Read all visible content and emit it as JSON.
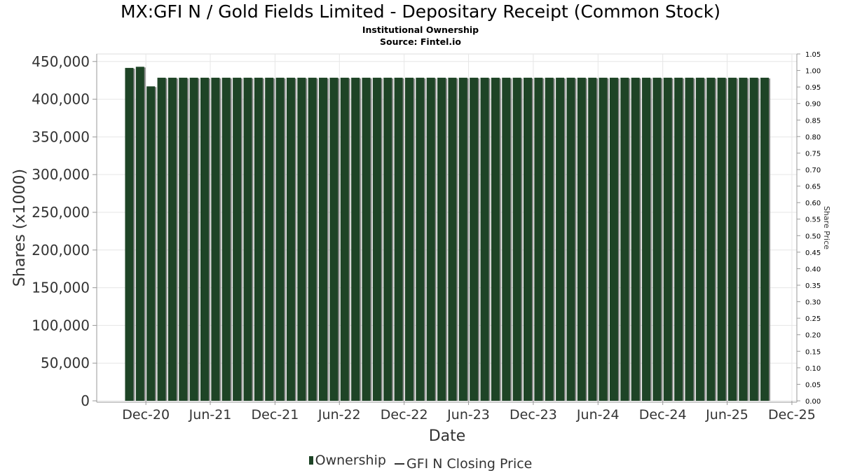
{
  "page": {
    "title": "MX:GFI N / Gold Fields Limited - Depositary Receipt (Common Stock)",
    "subtitle": "Institutional Ownership",
    "source": "Source: Fintel.io"
  },
  "colors": {
    "bar_fill": "#1e4426",
    "bar_shadow": "#8c8c8c",
    "grid": "#e6e6e6",
    "axis": "#999999",
    "axis_text": "#333333"
  },
  "legend": {
    "ownership_label": "Ownership",
    "price_label": "GFI N Closing Price"
  },
  "chart_data": {
    "type": "bar",
    "title": "MX:GFI N / Gold Fields Limited - Depositary Receipt (Common Stock)",
    "subtitle": "Institutional Ownership",
    "xlabel": "Date",
    "ylabel": "Shares (x1000)",
    "y2label": "Share Price",
    "ylim": [
      0,
      460000
    ],
    "y2lim": [
      0,
      1.05
    ],
    "xlim": [
      "2020-07-15",
      "2025-12-15"
    ],
    "grid": true,
    "legend_position": "bottom",
    "yticks": [
      {
        "value": 0,
        "label": "0"
      },
      {
        "value": 50000,
        "label": "50,000"
      },
      {
        "value": 100000,
        "label": "100,000"
      },
      {
        "value": 150000,
        "label": "150,000"
      },
      {
        "value": 200000,
        "label": "200,000"
      },
      {
        "value": 250000,
        "label": "250,000"
      },
      {
        "value": 300000,
        "label": "300,000"
      },
      {
        "value": 350000,
        "label": "350,000"
      },
      {
        "value": 400000,
        "label": "400,000"
      },
      {
        "value": 450000,
        "label": "450,000"
      }
    ],
    "y2ticks": [
      "0.00",
      "0.05",
      "0.10",
      "0.15",
      "0.20",
      "0.25",
      "0.30",
      "0.35",
      "0.40",
      "0.45",
      "0.50",
      "0.55",
      "0.60",
      "0.65",
      "0.70",
      "0.75",
      "0.80",
      "0.85",
      "0.90",
      "0.95",
      "1.00",
      "1.05"
    ],
    "xticks": [
      {
        "date": "2020-12-01",
        "label": "Dec-20"
      },
      {
        "date": "2021-06-01",
        "label": "Jun-21"
      },
      {
        "date": "2021-12-01",
        "label": "Dec-21"
      },
      {
        "date": "2022-06-01",
        "label": "Jun-22"
      },
      {
        "date": "2022-12-01",
        "label": "Dec-22"
      },
      {
        "date": "2023-06-01",
        "label": "Jun-23"
      },
      {
        "date": "2023-12-01",
        "label": "Dec-23"
      },
      {
        "date": "2024-06-01",
        "label": "Jun-24"
      },
      {
        "date": "2024-12-01",
        "label": "Dec-24"
      },
      {
        "date": "2025-06-01",
        "label": "Jun-25"
      },
      {
        "date": "2025-12-01",
        "label": "Dec-25"
      }
    ],
    "series": [
      {
        "name": "Ownership",
        "start_date": "2020-10-15",
        "end_date": "2025-09-15",
        "values": [
          441500,
          443000,
          417000,
          428500,
          428500,
          428500,
          428500,
          428500,
          428500,
          428500,
          428500,
          428500,
          428500,
          428500,
          428500,
          428500,
          428500,
          428500,
          428500,
          428500,
          428500,
          428500,
          428500,
          428500,
          428500,
          428500,
          428500,
          428500,
          428500,
          428500,
          428500,
          428500,
          428500,
          428500,
          428500,
          428500,
          428500,
          428500,
          428500,
          428500,
          428500,
          428500,
          428500,
          428500,
          428500,
          428500,
          428500,
          428500,
          428500,
          428500,
          428500,
          428500,
          428500,
          428500,
          428500,
          428500,
          428500,
          428500,
          428500,
          428500
        ]
      },
      {
        "name": "GFI N Closing Price",
        "values": []
      }
    ]
  }
}
